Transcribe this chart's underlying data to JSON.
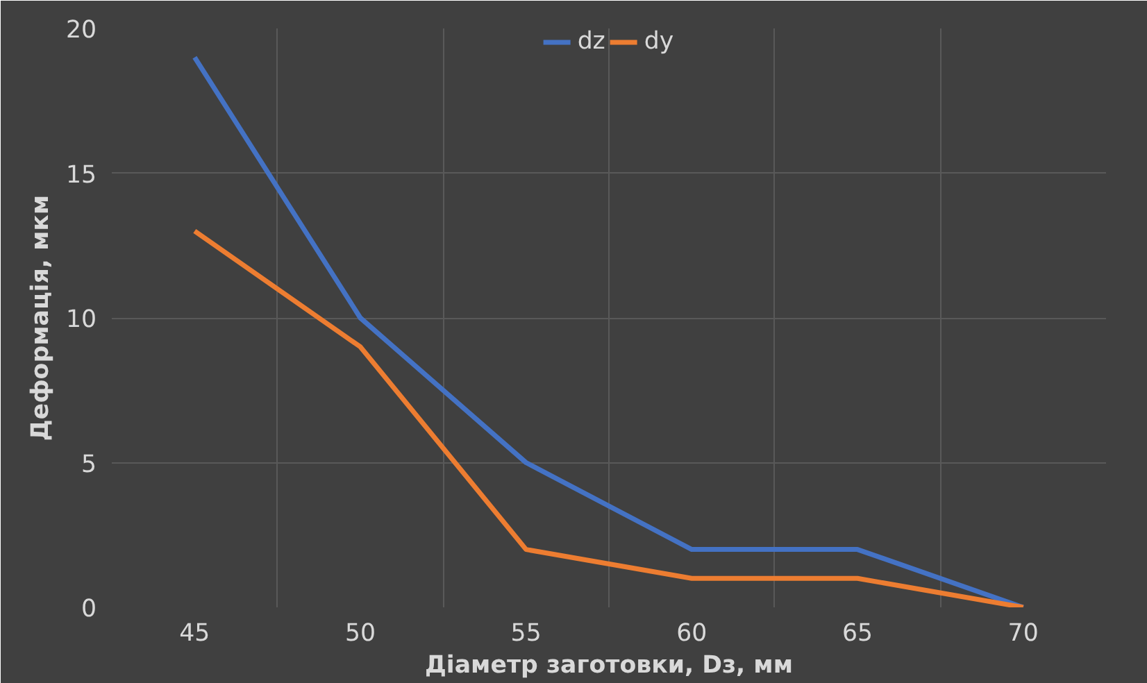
{
  "chart_data": {
    "type": "line",
    "xlabel": "Діаметр заготовки, Dз, мм",
    "ylabel": "Деформація, мкм",
    "categories": [
      "45",
      "50",
      "55",
      "60",
      "65",
      "70"
    ],
    "series": [
      {
        "name": "dz",
        "color": "#4472c4",
        "values": [
          19,
          10,
          5,
          2,
          2,
          0
        ]
      },
      {
        "name": "dy",
        "color": "#ed7d31",
        "values": [
          13,
          9,
          2,
          1,
          1,
          0
        ]
      }
    ],
    "ylim": [
      0,
      20
    ],
    "yticks": [
      0,
      5,
      10,
      15,
      20
    ],
    "grid": true,
    "legend": "top",
    "marker": "none",
    "line_style": "solid"
  }
}
